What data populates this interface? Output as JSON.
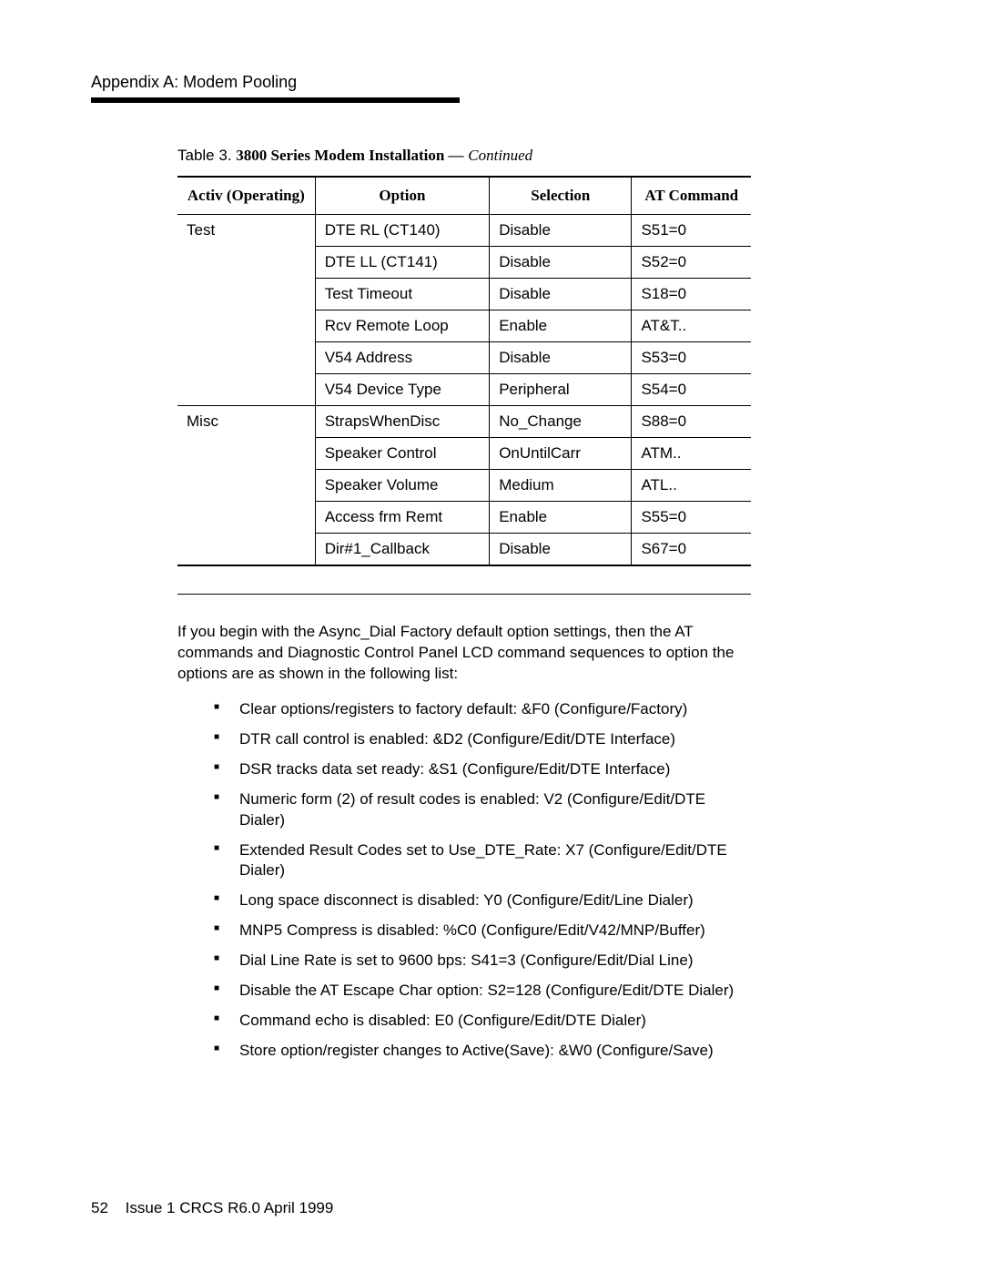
{
  "header": {
    "appendix": "Appendix A: Modem Pooling"
  },
  "table": {
    "caption_label": "Table 3.",
    "caption_title": "3800 Series Modem Installation —",
    "caption_cont": "Continued",
    "columns": {
      "activ": "Activ (Operating)",
      "option": "Option",
      "selection": "Selection",
      "command": "AT Command"
    },
    "groups": [
      {
        "activ": "Test",
        "rows": [
          {
            "option": "DTE RL (CT140)",
            "selection": "Disable",
            "command": "S51=0"
          },
          {
            "option": "DTE LL (CT141)",
            "selection": "Disable",
            "command": "S52=0"
          },
          {
            "option": "Test Timeout",
            "selection": "Disable",
            "command": "S18=0"
          },
          {
            "option": "Rcv Remote Loop",
            "selection": "Enable",
            "command": "AT&T.."
          },
          {
            "option": "V54 Address",
            "selection": "Disable",
            "command": "S53=0"
          },
          {
            "option": "V54 Device Type",
            "selection": "Peripheral",
            "command": "S54=0"
          }
        ]
      },
      {
        "activ": "Misc",
        "rows": [
          {
            "option": "StrapsWhenDisc",
            "selection": "No_Change",
            "command": "S88=0"
          },
          {
            "option": "Speaker Control",
            "selection": "OnUntilCarr",
            "command": "ATM.."
          },
          {
            "option": "Speaker Volume",
            "selection": "Medium",
            "command": "ATL.."
          },
          {
            "option": "Access frm Remt",
            "selection": "Enable",
            "command": "S55=0"
          },
          {
            "option": "Dir#1_Callback",
            "selection": "Disable",
            "command": "S67=0"
          }
        ]
      }
    ]
  },
  "intro": "If you begin with the Async_Dial Factory default option settings, then the AT commands and Diagnostic Control Panel LCD command sequences to option the options are as shown in the following list:",
  "bullets": [
    "Clear options/registers to factory default: &F0 (Configure/Factory)",
    "DTR call control is enabled: &D2 (Configure/Edit/DTE Interface)",
    "DSR tracks data set ready: &S1 (Configure/Edit/DTE Interface)",
    "Numeric form (2) of result codes is enabled: V2 (Configure/Edit/DTE Dialer)",
    "Extended Result Codes set to Use_DTE_Rate: X7 (Configure/Edit/DTE Dialer)",
    "Long space disconnect is disabled: Y0 (Configure/Edit/Line Dialer)",
    "MNP5 Compress is disabled: %C0 (Configure/Edit/V42/MNP/Buffer)",
    "Dial Line Rate is set to 9600 bps: S41=3 (Configure/Edit/Dial Line)",
    "Disable the AT Escape Char option: S2=128 (Configure/Edit/DTE Dialer)",
    "Command echo is disabled: E0 (Configure/Edit/DTE Dialer)",
    "Store option/register changes to Active(Save): &W0 (Configure/Save)"
  ],
  "footer": {
    "page": "52",
    "issue": "Issue 1 CRCS R6.0  April 1999"
  }
}
